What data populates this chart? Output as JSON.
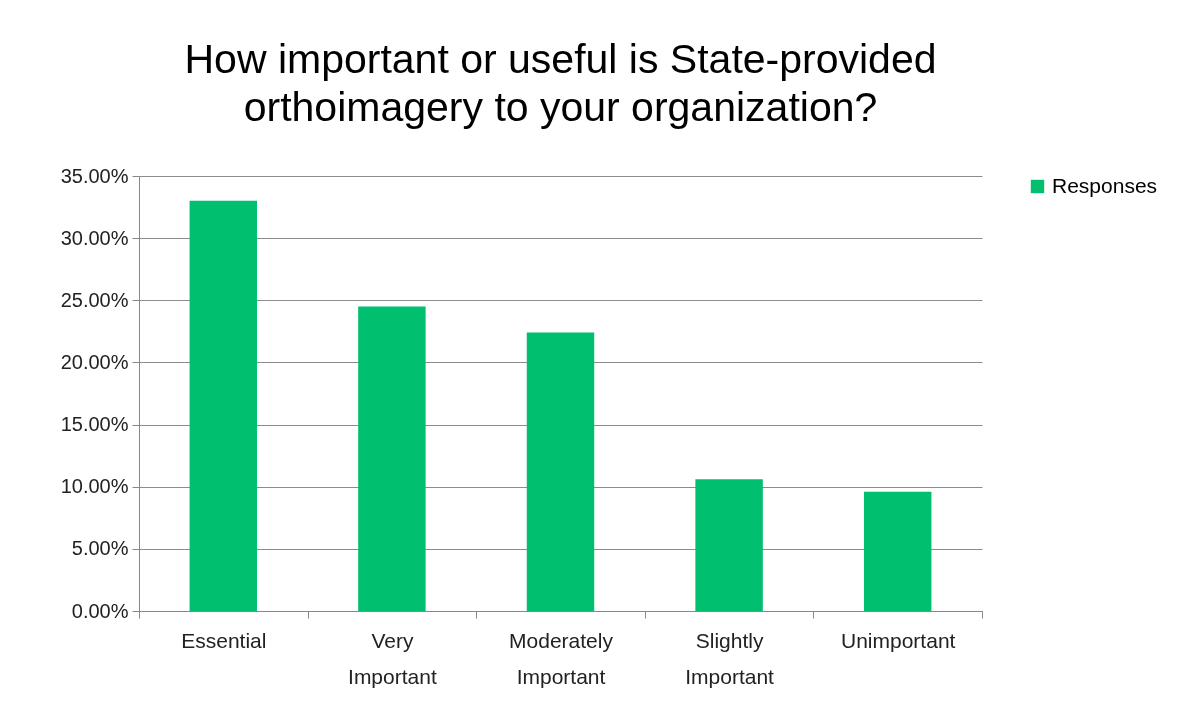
{
  "chart_data": {
    "type": "bar",
    "title": "How important or useful is State-provided orthoimagery to your organization?",
    "categories": [
      "Essential",
      "Very Important",
      "Moderately Important",
      "Slightly Important",
      "Unimportant"
    ],
    "series": [
      {
        "name": "Responses",
        "color": "#00bf6f",
        "values": [
          33.0,
          24.5,
          22.4,
          10.6,
          9.6
        ]
      }
    ],
    "ylim": [
      0,
      35
    ],
    "yticks": [
      {
        "value": 0,
        "label": "0.00%"
      },
      {
        "value": 5,
        "label": "5.00%"
      },
      {
        "value": 10,
        "label": "10.00%"
      },
      {
        "value": 15,
        "label": "15.00%"
      },
      {
        "value": 20,
        "label": "20.00%"
      },
      {
        "value": 25,
        "label": "25.00%"
      },
      {
        "value": 30,
        "label": "30.00%"
      },
      {
        "value": 35,
        "label": "35.00%"
      }
    ],
    "grid": "y",
    "legend": "right"
  }
}
